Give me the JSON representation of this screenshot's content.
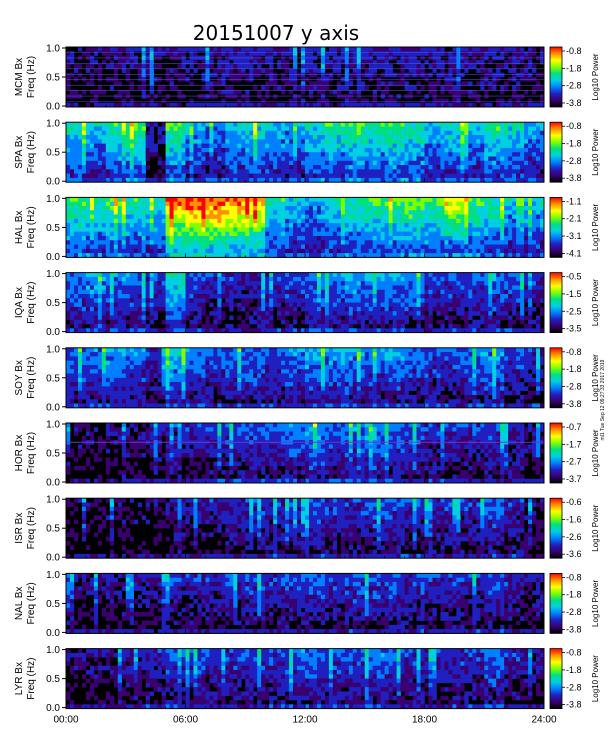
{
  "chart_data": {
    "type": "heatmap",
    "title": "20151007 y axis",
    "side_note": "ml1 Tue Sep 12 09:27:33 2017 2019",
    "x_ticks": [
      "00:00",
      "06:00",
      "12:00",
      "18:00",
      "24:00"
    ],
    "x_range_hours": [
      0,
      24
    ],
    "y_ticks": [
      "0.0",
      "0.5",
      "1.0"
    ],
    "y_range_hz": [
      0,
      1.0
    ],
    "colorbar_label": "Log10 Power",
    "colormap": [
      "#000000",
      "#3a0070",
      "#2020c0",
      "#0080ff",
      "#00d0e0",
      "#00e080",
      "#80ff00",
      "#ffff00",
      "#ff9000",
      "#ff0000"
    ],
    "panels": [
      {
        "station": "MCM",
        "ylabel_top": "MCM Bx",
        "ylabel_bottom": "Freq (Hz)",
        "cbar_ticks": [
          "-0.8",
          "-1.8",
          "-2.8",
          "-3.8"
        ],
        "activity": [
          0.12,
          0.12,
          0.13,
          0.13,
          0.14,
          0.14,
          0.15,
          0.16,
          0.17,
          0.17,
          0.16,
          0.15,
          0.16,
          0.17,
          0.17,
          0.18,
          0.18,
          0.17,
          0.16,
          0.16,
          0.15,
          0.15,
          0.15,
          0.14
        ],
        "harmonic_lines": true
      },
      {
        "station": "SPA",
        "ylabel_top": "SPA Bx",
        "ylabel_bottom": "Freq (Hz)",
        "cbar_ticks": [
          "-0.8",
          "-1.8",
          "-2.8",
          "-3.8"
        ],
        "activity": [
          0.45,
          0.4,
          0.5,
          0.55,
          0.15,
          0.55,
          0.35,
          0.3,
          0.4,
          0.45,
          0.4,
          0.35,
          0.45,
          0.5,
          0.55,
          0.5,
          0.55,
          0.5,
          0.4,
          0.45,
          0.4,
          0.5,
          0.45,
          0.35
        ]
      },
      {
        "station": "HAL",
        "ylabel_top": "HAL Bx",
        "ylabel_bottom": "Freq (Hz)",
        "cbar_ticks": [
          "-1.1",
          "-2.1",
          "-3.1",
          "-4.1"
        ],
        "activity": [
          0.55,
          0.5,
          0.55,
          0.5,
          0.45,
          0.85,
          0.9,
          0.9,
          0.85,
          0.8,
          0.5,
          0.4,
          0.35,
          0.45,
          0.5,
          0.55,
          0.55,
          0.6,
          0.55,
          0.5,
          0.55,
          0.5,
          0.4,
          0.4
        ]
      },
      {
        "station": "IQA",
        "ylabel_top": "IQA Bx",
        "ylabel_bottom": "Freq (Hz)",
        "cbar_ticks": [
          "-0.5",
          "-1.5",
          "-2.5",
          "-3.5"
        ],
        "activity": [
          0.3,
          0.35,
          0.3,
          0.3,
          0.2,
          0.45,
          0.25,
          0.2,
          0.2,
          0.2,
          0.2,
          0.25,
          0.3,
          0.3,
          0.35,
          0.35,
          0.35,
          0.3,
          0.25,
          0.25,
          0.25,
          0.3,
          0.25,
          0.2
        ]
      },
      {
        "station": "SOY",
        "ylabel_top": "SOY Bx",
        "ylabel_bottom": "Freq (Hz)",
        "cbar_ticks": [
          "-0.8",
          "-1.8",
          "-2.8",
          "-3.8"
        ],
        "activity": [
          0.3,
          0.3,
          0.35,
          0.3,
          0.2,
          0.4,
          0.3,
          0.25,
          0.3,
          0.3,
          0.25,
          0.3,
          0.35,
          0.35,
          0.35,
          0.3,
          0.35,
          0.3,
          0.25,
          0.25,
          0.3,
          0.35,
          0.25,
          0.2
        ]
      },
      {
        "station": "HOR",
        "ylabel_top": "HOR Bx",
        "ylabel_bottom": "Freq (Hz)",
        "cbar_ticks": [
          "-0.7",
          "-1.7",
          "-2.7",
          "-3.7"
        ],
        "activity": [
          0.1,
          0.1,
          0.12,
          0.12,
          0.15,
          0.18,
          0.2,
          0.22,
          0.25,
          0.25,
          0.25,
          0.3,
          0.35,
          0.3,
          0.3,
          0.35,
          0.3,
          0.25,
          0.2,
          0.2,
          0.2,
          0.25,
          0.2,
          0.15
        ],
        "hline_frac": 0.68
      },
      {
        "station": "ISR",
        "ylabel_top": "ISR Bx",
        "ylabel_bottom": "Freq (Hz)",
        "cbar_ticks": [
          "-0.6",
          "-1.6",
          "-2.6",
          "-3.6"
        ],
        "activity": [
          0.08,
          0.08,
          0.1,
          0.1,
          0.12,
          0.15,
          0.15,
          0.18,
          0.2,
          0.22,
          0.2,
          0.22,
          0.25,
          0.22,
          0.22,
          0.25,
          0.25,
          0.22,
          0.2,
          0.2,
          0.2,
          0.28,
          0.2,
          0.12
        ]
      },
      {
        "station": "NAL",
        "ylabel_top": "NAL Bx",
        "ylabel_bottom": "Freq (Hz)",
        "cbar_ticks": [
          "-0.8",
          "-1.8",
          "-2.8",
          "-3.8"
        ],
        "activity": [
          0.12,
          0.12,
          0.15,
          0.15,
          0.15,
          0.2,
          0.2,
          0.2,
          0.22,
          0.22,
          0.22,
          0.25,
          0.25,
          0.22,
          0.25,
          0.25,
          0.25,
          0.22,
          0.2,
          0.22,
          0.2,
          0.25,
          0.2,
          0.15
        ]
      },
      {
        "station": "LYR",
        "ylabel_top": "LYR Bx",
        "ylabel_bottom": "Freq (Hz)",
        "cbar_ticks": [
          "-0.8",
          "-1.8",
          "-2.8",
          "-3.8"
        ],
        "activity": [
          0.12,
          0.15,
          0.15,
          0.18,
          0.2,
          0.25,
          0.25,
          0.22,
          0.22,
          0.25,
          0.22,
          0.28,
          0.3,
          0.25,
          0.25,
          0.3,
          0.28,
          0.22,
          0.2,
          0.22,
          0.22,
          0.3,
          0.2,
          0.15
        ]
      }
    ]
  }
}
